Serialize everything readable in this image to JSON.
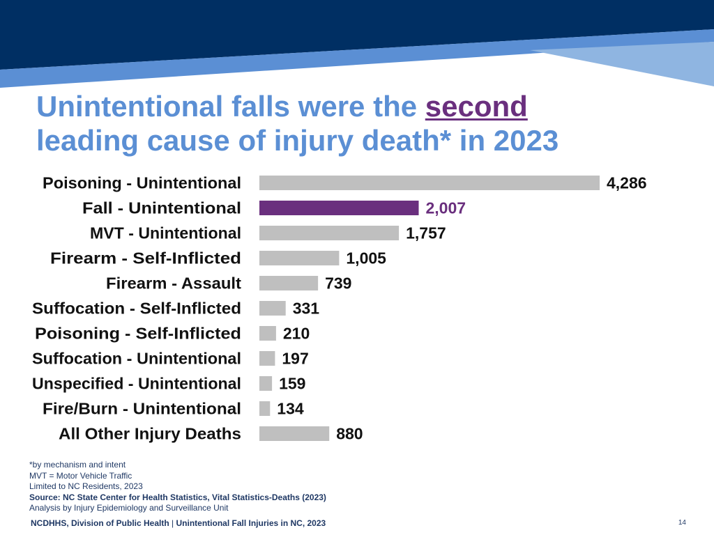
{
  "title": {
    "line1_pre": "Unintentional falls were the ",
    "highlight": "second",
    "line2": "leading cause of injury death* in 2023"
  },
  "colors": {
    "navy": "#002f63",
    "band_blue": "#5b8fd4",
    "band_light": "#8fb5e1",
    "bar_default": "#bfbfbf",
    "bar_highlight": "#6a2f7e",
    "title_blue": "#5b8fd4"
  },
  "chart_data": {
    "type": "bar",
    "orientation": "horizontal",
    "categories": [
      "Poisoning - Unintentional",
      "Fall - Unintentional",
      "MVT - Unintentional",
      "Firearm - Self-Inflicted",
      "Firearm - Assault",
      "Suffocation - Self-Inflicted",
      "Poisoning - Self-Inflicted",
      "Suffocation - Unintentional",
      "Unspecified - Unintentional",
      "Fire/Burn - Unintentional",
      "All Other Injury Deaths"
    ],
    "values": [
      4286,
      2007,
      1757,
      1005,
      739,
      331,
      210,
      197,
      159,
      134,
      880
    ],
    "value_labels": [
      "4,286",
      "2,007",
      "1,757",
      "1,005",
      "739",
      "331",
      "210",
      "197",
      "159",
      "134",
      "880"
    ],
    "highlight_index": 1,
    "title": "",
    "xlabel": "",
    "ylabel": "",
    "grid": false,
    "legend": "none"
  },
  "notes": {
    "line1": "*by mechanism and intent",
    "line2": "MVT = Motor Vehicle Traffic",
    "line3": "Limited to NC Residents, 2023",
    "source": "Source: NC State Center for Health Statistics, Vital Statistics-Deaths (2023)",
    "line5": "Analysis by Injury Epidemiology and Surveillance Unit"
  },
  "footer": {
    "org": "NCDHHS, Division of Public Health",
    "separator": "|",
    "topic": "Unintentional Fall Injuries in NC, 2023"
  },
  "page_number": "14"
}
